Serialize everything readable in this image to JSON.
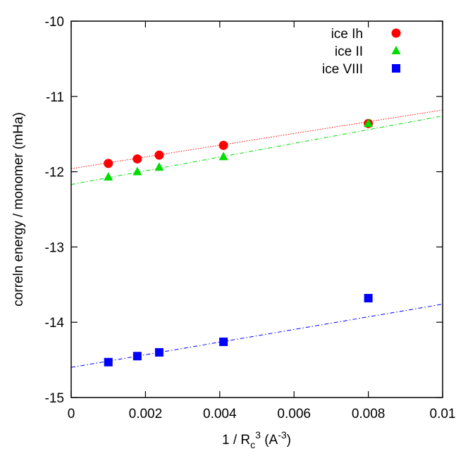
{
  "chart_data": {
    "type": "scatter",
    "xlabel": {
      "main": "1 / R",
      "sub": "c",
      "sup": "3",
      "unit_pre": " (A",
      "unit_sup": "-3",
      "unit_post": ")"
    },
    "ylabel": "correln energy / monomer (mHa)",
    "xlim": [
      0,
      0.01
    ],
    "ylim": [
      -15,
      -10
    ],
    "xticks": [
      0,
      0.002,
      0.004,
      0.006,
      0.008,
      0.01
    ],
    "xtick_labels": [
      "0",
      "0.002",
      "0.004",
      "0.006",
      "0.008",
      "0.01"
    ],
    "yticks": [
      -15,
      -14,
      -13,
      -12,
      -11,
      -10
    ],
    "ytick_labels": [
      "-15",
      "-14",
      "-13",
      "-12",
      "-11",
      "-10"
    ],
    "legend_position": "top-right",
    "series": [
      {
        "name": "ice Ih",
        "marker": "circle",
        "color": "#ff0000",
        "x": [
          0.001,
          0.00178,
          0.00237,
          0.0041,
          0.008
        ],
        "y": [
          -11.89,
          -11.83,
          -11.78,
          -11.65,
          -11.36
        ],
        "fit": {
          "intercept": -11.96,
          "slope": 78,
          "style": "dotted"
        }
      },
      {
        "name": "ice II",
        "marker": "triangle",
        "color": "#00dd00",
        "x": [
          0.001,
          0.00178,
          0.00237,
          0.0041,
          0.008
        ],
        "y": [
          -12.07,
          -12.0,
          -11.94,
          -11.8,
          -11.36
        ],
        "fit": {
          "intercept": -12.17,
          "slope": 91,
          "style": "dashdot"
        }
      },
      {
        "name": "ice VIII",
        "marker": "square",
        "color": "#0000ff",
        "x": [
          0.001,
          0.00178,
          0.00237,
          0.0041,
          0.008
        ],
        "y": [
          -14.53,
          -14.45,
          -14.4,
          -14.26,
          -13.68
        ],
        "fit": {
          "intercept": -14.6,
          "slope": 84,
          "style": "dashdot"
        }
      }
    ]
  }
}
